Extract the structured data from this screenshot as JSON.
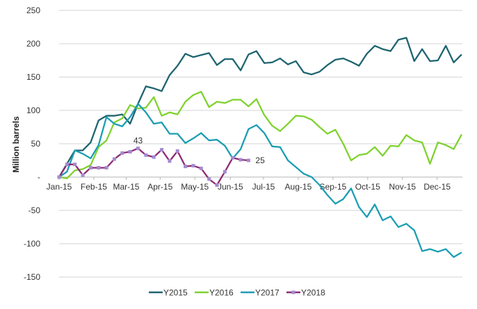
{
  "chart_data": {
    "type": "line",
    "title": "",
    "xlabel": "",
    "ylabel": "Million barrels",
    "ylim": [
      -150,
      250
    ],
    "yticks": [
      250,
      200,
      150,
      100,
      50,
      0,
      -50,
      -100,
      -150
    ],
    "ytick_labels": [
      "250",
      "200",
      "150",
      "100",
      "50",
      "-",
      "-50",
      "-100",
      "-150"
    ],
    "x_unit": "week of year",
    "month_labels": [
      "Jan-15",
      "Feb-15",
      "Mar-15",
      "Apr-15",
      "May-15",
      "Jun-15",
      "Jul-15",
      "Aug-15",
      "Sep-15",
      "Oct-15",
      "Nov-15",
      "Dec-15"
    ],
    "month_start_weeks": [
      0,
      4.4,
      8.5,
      12.8,
      17.2,
      21.7,
      25.9,
      30.3,
      34.7,
      39.1,
      43.5,
      47.9
    ],
    "grid": true,
    "legend_position": "bottom",
    "series": [
      {
        "name": "Y2015",
        "color": "#1d6470",
        "markers": false,
        "values": [
          0,
          20,
          40,
          40,
          52,
          85,
          92,
          92,
          94,
          80,
          110,
          136,
          133,
          129,
          153,
          167,
          185,
          180,
          183,
          186,
          168,
          177,
          177,
          160,
          184,
          189,
          171,
          172,
          178,
          169,
          174,
          157,
          154,
          158,
          168,
          176,
          178,
          173,
          167,
          185,
          197,
          192,
          189,
          206,
          209,
          174,
          192,
          174,
          175,
          197,
          172,
          184
        ]
      },
      {
        "name": "Y2016",
        "color": "#7fd22e",
        "markers": false,
        "values": [
          0,
          -2,
          10,
          12,
          18,
          45,
          55,
          82,
          88,
          108,
          103,
          104,
          120,
          92,
          97,
          94,
          113,
          123,
          128,
          105,
          113,
          111,
          116,
          116,
          106,
          117,
          93,
          77,
          69,
          80,
          92,
          91,
          86,
          75,
          65,
          71,
          50,
          25,
          33,
          35,
          45,
          32,
          47,
          46,
          63,
          55,
          52,
          20,
          52,
          48,
          42,
          64
        ]
      },
      {
        "name": "Y2017",
        "color": "#1b9db4",
        "markers": false,
        "values": [
          0,
          8,
          40,
          35,
          28,
          48,
          90,
          80,
          76,
          90,
          110,
          97,
          80,
          82,
          65,
          65,
          51,
          58,
          66,
          55,
          56,
          47,
          28,
          42,
          72,
          78,
          66,
          46,
          45,
          25,
          15,
          5,
          0,
          -12,
          -27,
          -40,
          -33,
          -17,
          -45,
          -60,
          -41,
          -65,
          -59,
          -75,
          -70,
          -80,
          -111,
          -108,
          -112,
          -108,
          -120,
          -113
        ]
      },
      {
        "name": "Y2018",
        "color": "#8e2a72",
        "marker_color": "#a48ad0",
        "markers": true,
        "values": [
          0,
          19,
          19,
          3,
          14,
          14,
          14,
          27,
          36,
          38,
          43,
          33,
          30,
          41,
          24,
          39,
          16,
          17,
          13,
          -3,
          -12,
          8,
          29,
          26,
          25
        ]
      }
    ],
    "annotations": [
      {
        "series": "Y2018",
        "index": 10,
        "text": "43"
      },
      {
        "series": "Y2018",
        "index": 24,
        "text": "25"
      }
    ]
  }
}
